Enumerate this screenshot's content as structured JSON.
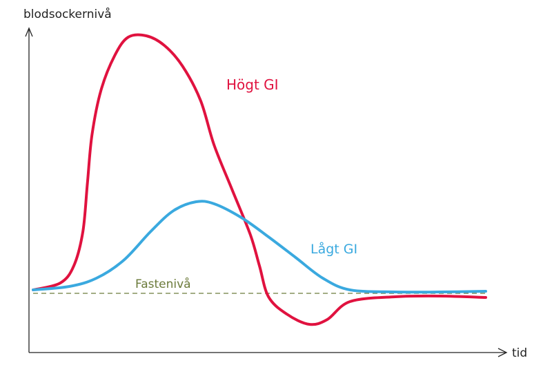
{
  "chart_data": {
    "type": "line",
    "title": "",
    "xlabel": "tid",
    "ylabel": "blodsockernivå",
    "grid": false,
    "baseline": {
      "name": "Fastenivå",
      "value": 0,
      "color": "#6b7a3a"
    },
    "series": [
      {
        "name": "Högt GI",
        "color": "#e0123f",
        "points": [
          [
            0,
            5
          ],
          [
            6,
            15
          ],
          [
            9,
            40
          ],
          [
            11,
            90
          ],
          [
            12,
            160
          ],
          [
            13,
            230
          ],
          [
            15,
            295
          ],
          [
            18,
            345
          ],
          [
            21,
            372
          ],
          [
            25,
            374
          ],
          [
            29,
            360
          ],
          [
            33,
            330
          ],
          [
            37,
            280
          ],
          [
            40,
            215
          ],
          [
            44,
            150
          ],
          [
            48,
            85
          ],
          [
            50,
            40
          ],
          [
            52,
            -5
          ],
          [
            56,
            -30
          ],
          [
            61,
            -45
          ],
          [
            65,
            -38
          ],
          [
            70,
            -12
          ],
          [
            80,
            -5
          ],
          [
            90,
            -4
          ],
          [
            100,
            -6
          ]
        ]
      },
      {
        "name": "Lågt GI",
        "color": "#3aa9df",
        "points": [
          [
            0,
            5
          ],
          [
            8,
            10
          ],
          [
            14,
            22
          ],
          [
            20,
            48
          ],
          [
            26,
            90
          ],
          [
            31,
            120
          ],
          [
            36,
            133
          ],
          [
            40,
            130
          ],
          [
            46,
            110
          ],
          [
            52,
            82
          ],
          [
            58,
            52
          ],
          [
            64,
            22
          ],
          [
            70,
            5
          ],
          [
            80,
            2
          ],
          [
            90,
            2
          ],
          [
            100,
            3
          ]
        ]
      }
    ],
    "xlim": [
      0,
      100
    ],
    "ylim": [
      -80,
      400
    ]
  }
}
